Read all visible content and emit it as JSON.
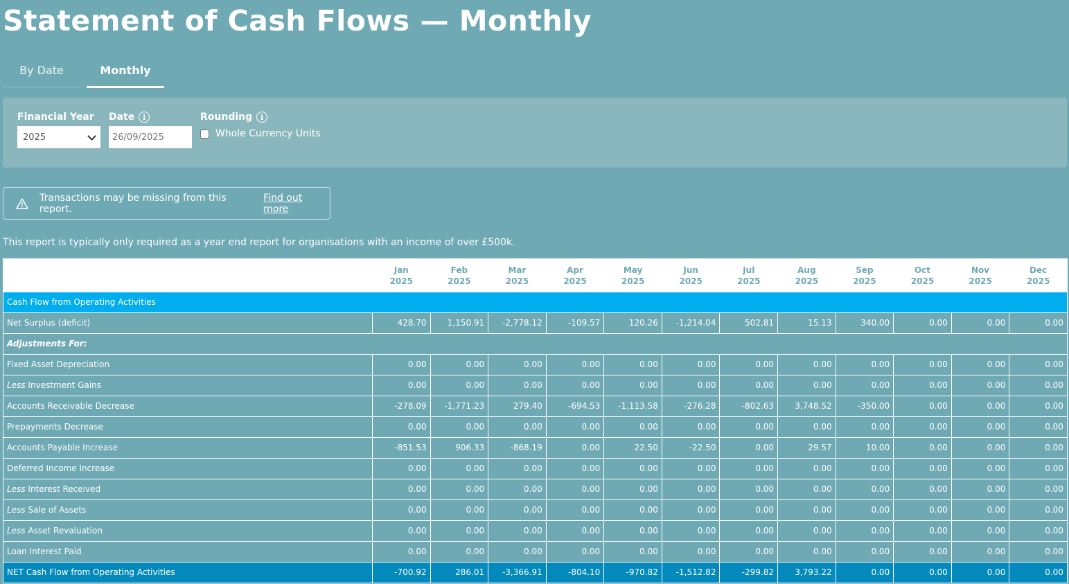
{
  "title": "Statement of Cash Flows — Monthly",
  "tabs": [
    {
      "label": "By Date",
      "active": false
    },
    {
      "label": "Monthly",
      "active": true
    }
  ],
  "filters": {
    "financial_year_label": "Financial Year",
    "financial_year_value": "2025",
    "date_label": "Date",
    "date_placeholder": "26/09/2025",
    "rounding_label": "Rounding",
    "whole_currency_label": "Whole Currency Units",
    "whole_currency_checked": false
  },
  "alert": {
    "text": "Transactions may be missing from this report.",
    "link": "Find out more"
  },
  "note": "This report is typically only required as a year end report for organisations with an income of over £500k.",
  "table": {
    "months": [
      {
        "m": "Jan",
        "y": "2025"
      },
      {
        "m": "Feb",
        "y": "2025"
      },
      {
        "m": "Mar",
        "y": "2025"
      },
      {
        "m": "Apr",
        "y": "2025"
      },
      {
        "m": "May",
        "y": "2025"
      },
      {
        "m": "Jun",
        "y": "2025"
      },
      {
        "m": "Jul",
        "y": "2025"
      },
      {
        "m": "Aug",
        "y": "2025"
      },
      {
        "m": "Sep",
        "y": "2025"
      },
      {
        "m": "Oct",
        "y": "2025"
      },
      {
        "m": "Nov",
        "y": "2025"
      },
      {
        "m": "Dec",
        "y": "2025"
      }
    ],
    "rows": [
      {
        "type": "section",
        "label": "Cash Flow from Operating Activities"
      },
      {
        "type": "data",
        "label": "Net Surplus (deficit)",
        "values": [
          "428.70",
          "1,150.91",
          "-2,778.12",
          "-109.57",
          "120.26",
          "-1,214.04",
          "502.81",
          "15.13",
          "340.00",
          "0.00",
          "0.00",
          "0.00"
        ]
      },
      {
        "type": "subhead",
        "label": "Adjustments For:"
      },
      {
        "type": "data",
        "label": "Fixed Asset Depreciation",
        "values": [
          "0.00",
          "0.00",
          "0.00",
          "0.00",
          "0.00",
          "0.00",
          "0.00",
          "0.00",
          "0.00",
          "0.00",
          "0.00",
          "0.00"
        ]
      },
      {
        "type": "data",
        "prefix": "Less",
        "label": "Investment Gains",
        "values": [
          "0.00",
          "0.00",
          "0.00",
          "0.00",
          "0.00",
          "0.00",
          "0.00",
          "0.00",
          "0.00",
          "0.00",
          "0.00",
          "0.00"
        ]
      },
      {
        "type": "data",
        "label": "Accounts Receivable Decrease",
        "values": [
          "-278.09",
          "-1,771.23",
          "279.40",
          "-694.53",
          "-1,113.58",
          "-276.28",
          "-802.63",
          "3,748.52",
          "-350.00",
          "0.00",
          "0.00",
          "0.00"
        ]
      },
      {
        "type": "data",
        "label": "Prepayments Decrease",
        "values": [
          "0.00",
          "0.00",
          "0.00",
          "0.00",
          "0.00",
          "0.00",
          "0.00",
          "0.00",
          "0.00",
          "0.00",
          "0.00",
          "0.00"
        ]
      },
      {
        "type": "data",
        "label": "Accounts Payable Increase",
        "values": [
          "-851.53",
          "906.33",
          "-868.19",
          "0.00",
          "22.50",
          "-22.50",
          "0.00",
          "29.57",
          "10.00",
          "0.00",
          "0.00",
          "0.00"
        ]
      },
      {
        "type": "data",
        "label": "Deferred Income Increase",
        "values": [
          "0.00",
          "0.00",
          "0.00",
          "0.00",
          "0.00",
          "0.00",
          "0.00",
          "0.00",
          "0.00",
          "0.00",
          "0.00",
          "0.00"
        ]
      },
      {
        "type": "data",
        "prefix": "Less",
        "label": "Interest Received",
        "values": [
          "0.00",
          "0.00",
          "0.00",
          "0.00",
          "0.00",
          "0.00",
          "0.00",
          "0.00",
          "0.00",
          "0.00",
          "0.00",
          "0.00"
        ]
      },
      {
        "type": "data",
        "prefix": "Less",
        "label": "Sale of Assets",
        "values": [
          "0.00",
          "0.00",
          "0.00",
          "0.00",
          "0.00",
          "0.00",
          "0.00",
          "0.00",
          "0.00",
          "0.00",
          "0.00",
          "0.00"
        ]
      },
      {
        "type": "data",
        "prefix": "Less",
        "label": "Asset Revaluation",
        "values": [
          "0.00",
          "0.00",
          "0.00",
          "0.00",
          "0.00",
          "0.00",
          "0.00",
          "0.00",
          "0.00",
          "0.00",
          "0.00",
          "0.00"
        ]
      },
      {
        "type": "data",
        "label": "Loan Interest Paid",
        "values": [
          "0.00",
          "0.00",
          "0.00",
          "0.00",
          "0.00",
          "0.00",
          "0.00",
          "0.00",
          "0.00",
          "0.00",
          "0.00",
          "0.00"
        ]
      },
      {
        "type": "total",
        "label": "NET Cash Flow from Operating Activities",
        "values": [
          "-700.92",
          "286.01",
          "-3,366.91",
          "-804.10",
          "-970.82",
          "-1,512.82",
          "-299.82",
          "3,793.22",
          "0.00",
          "0.00",
          "0.00",
          "0.00"
        ]
      }
    ]
  }
}
